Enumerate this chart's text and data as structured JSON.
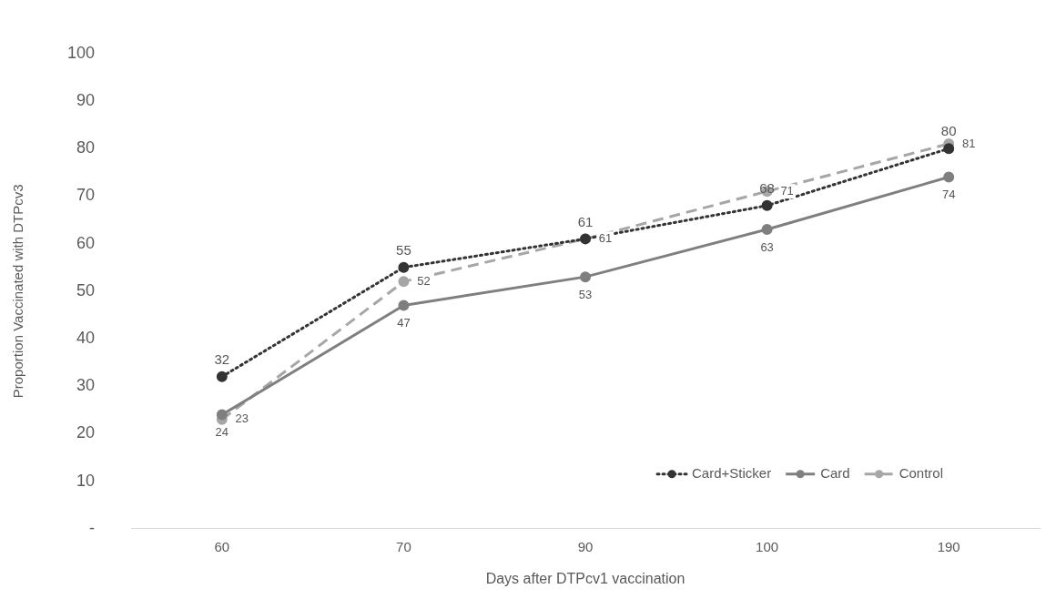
{
  "chart_data": {
    "type": "line",
    "xlabel": "Days after DTPcv1 vaccination",
    "ylabel": "Proportion Vaccinated with DTPcv3",
    "categories": [
      "60",
      "70",
      "90",
      "100",
      "190"
    ],
    "series": [
      {
        "name": "Card+Sticker",
        "color": "#333333",
        "line_style": "dotted",
        "values": [
          32,
          55,
          61,
          68,
          80
        ]
      },
      {
        "name": "Card",
        "color": "#7f7f7f",
        "line_style": "solid",
        "values": [
          24,
          47,
          53,
          63,
          74
        ]
      },
      {
        "name": "Control",
        "color": "#a6a6a6",
        "line_style": "dashed",
        "values": [
          23,
          52,
          61,
          71,
          81
        ]
      }
    ],
    "ylim": [
      0,
      100
    ],
    "yticks": [
      {
        "value": 0,
        "label": "-"
      },
      10,
      20,
      30,
      40,
      50,
      60,
      70,
      80,
      90,
      100
    ],
    "grid": false,
    "legend": "bottom right",
    "marker": "circle",
    "data_labels": true
  }
}
